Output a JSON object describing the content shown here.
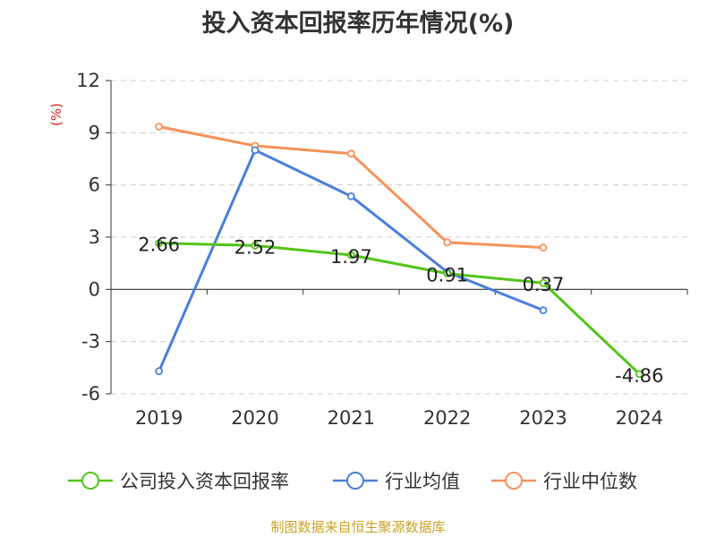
{
  "chart_data": {
    "type": "line",
    "title": "投入资本回报率历年情况(%)",
    "ylabel": "(%)",
    "xlabel": "",
    "categories": [
      "2019",
      "2020",
      "2021",
      "2022",
      "2023",
      "2024"
    ],
    "ylim": [
      -6,
      12
    ],
    "yticks": [
      12,
      9,
      6,
      3,
      0,
      -3,
      -6
    ],
    "grid": true,
    "legend_position": "bottom",
    "series": [
      {
        "name": "公司投入资本回报率",
        "color": "#52c41a",
        "values": [
          2.66,
          2.52,
          1.97,
          0.91,
          0.37,
          -4.86
        ],
        "labels": [
          "2.66",
          "2.52",
          "1.97",
          "0.91",
          "0.37",
          "-4.86"
        ]
      },
      {
        "name": "行业均值",
        "color": "#4a7fdc",
        "values": [
          -4.7,
          8.0,
          5.35,
          1.0,
          -1.2,
          null
        ]
      },
      {
        "name": "行业中位数",
        "color": "#f5925a",
        "values": [
          9.35,
          8.25,
          7.8,
          2.7,
          2.4,
          null
        ]
      }
    ]
  },
  "footer": {
    "source": "制图数据来自恒生聚源数据库"
  }
}
